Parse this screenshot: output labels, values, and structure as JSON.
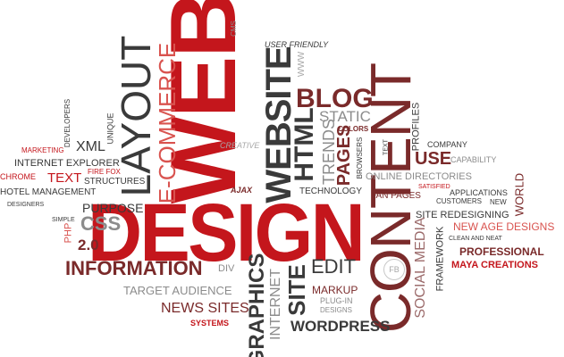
{
  "words": {
    "web": "WEB",
    "design": "DESIGN",
    "content": "CONTENT",
    "website": "WEBSITE",
    "layout": "LAYOUT",
    "ecommerce": "E-COMMERCE",
    "blog": "BLOG",
    "html": "HTML",
    "graphics": "GRAPHICS",
    "site": "SITE",
    "edit": "EDIT",
    "information": "INFORMATION",
    "wordpress": "WORDPRESS",
    "css": "CSS",
    "v20": "2.0",
    "internet": "INTERNET",
    "social_media": "SOCIAL MEDIA",
    "use": "USE",
    "pages": "PAGES",
    "trends": "TRENDS",
    "static": "STATIC",
    "colors": "COLORS",
    "browsers": "BROWSERS",
    "text_small": "TEXT",
    "online_directories": "ONLINE DIRECTORIES",
    "profiles": "PROFILES",
    "company": "COMPANY",
    "capability": "CAPABILITY",
    "satisfied": "SATISFIED",
    "fan_pages": "FAN PAGES",
    "applications": "APPLICATIONS",
    "customers": "CUSTOMERS",
    "new": "NEW",
    "world": "WORLD",
    "site_redesigning": "SITE REDESIGNING",
    "new_age_designs": "NEW AGE DESIGNS",
    "framework": "FRAMEWORK",
    "clean_and_neat": "CLEAN AND NEAT",
    "professional": "PROFESSIONAL",
    "maya_creations": "MAYA CREATIONS",
    "fb": "FB",
    "markup": "MARKUP",
    "plugin": "PLUG-IN",
    "designs": "DESIGNS",
    "target_audience": "TARGET AUDIENCE",
    "news_sites": "NEWS SITES",
    "systems": "SYSTEMS",
    "div": "DIV",
    "purpose": "PURPOSE",
    "simple": "SIMPLE",
    "designers": "DESIGNERS",
    "hotel_management": "HOTEL MANAGEMENT",
    "structures": "STRUCTURES",
    "firefox": "FIRE FOX",
    "text_red": "TEXT",
    "chrome": "CHROME",
    "internet_explorer": "INTERNET EXPLORER",
    "xml": "XML",
    "marketing": "MARKETING",
    "developers": "DEVELOPERS",
    "unique": "UNIQUE",
    "php": "PHP",
    "creative": "CREATIVE",
    "ajax": "AJAX",
    "technology": "TECHNOLOGY",
    "cms": "CMS",
    "user_friendly": "USER FRIENDLY",
    "www": "WWW"
  }
}
